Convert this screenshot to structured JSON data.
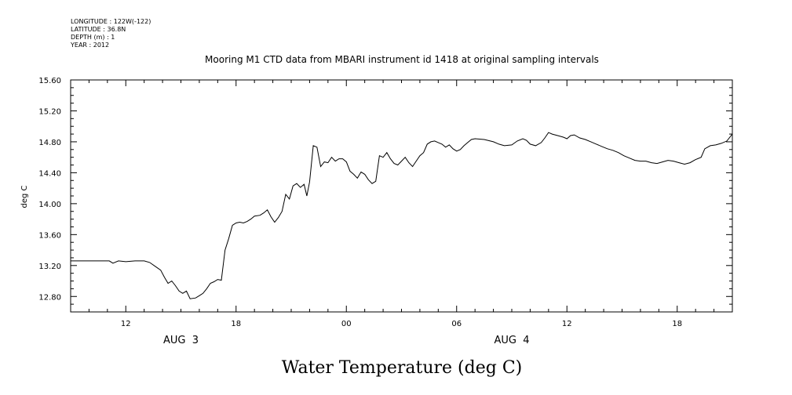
{
  "metadata": {
    "longitude": "LONGITUDE : 122W(-122)",
    "latitude": "LATITUDE : 36.8N",
    "depth": "DEPTH (m) : 1",
    "year": "YEAR : 2012"
  },
  "caption": "Water Temperature (deg C)",
  "chart_data": {
    "type": "line",
    "title": "Mooring M1 CTD data from MBARI instrument id 1418 at original sampling intervals",
    "xlabel": "",
    "ylabel": "deg C",
    "x_units": "hours since 2012-08-03 00:00",
    "xlim": [
      9,
      45
    ],
    "ylim": [
      12.6,
      15.6
    ],
    "y_ticks": [
      {
        "value": 12.8,
        "label": "12.80"
      },
      {
        "value": 13.2,
        "label": "13.20"
      },
      {
        "value": 13.6,
        "label": "13.60"
      },
      {
        "value": 14.0,
        "label": "14.00"
      },
      {
        "value": 14.4,
        "label": "14.40"
      },
      {
        "value": 14.8,
        "label": "14.80"
      },
      {
        "value": 15.2,
        "label": "15.20"
      },
      {
        "value": 15.6,
        "label": "15.60"
      }
    ],
    "x_ticks": [
      {
        "value": 12,
        "label": "12"
      },
      {
        "value": 18,
        "label": "18"
      },
      {
        "value": 24,
        "label": "00"
      },
      {
        "value": 30,
        "label": "06"
      },
      {
        "value": 36,
        "label": "12"
      },
      {
        "value": 42,
        "label": "18"
      }
    ],
    "date_labels": [
      {
        "value": 15,
        "label": "AUG  3"
      },
      {
        "value": 33,
        "label": "AUG  4"
      }
    ],
    "grid": false,
    "series": [
      {
        "values": [
          [
            9.0,
            13.26
          ],
          [
            9.5,
            13.26
          ],
          [
            10.0,
            13.26
          ],
          [
            10.5,
            13.26
          ],
          [
            11.1,
            13.26
          ],
          [
            11.3,
            13.23
          ],
          [
            11.6,
            13.26
          ],
          [
            12.0,
            13.25
          ],
          [
            12.5,
            13.26
          ],
          [
            13.0,
            13.26
          ],
          [
            13.3,
            13.24
          ],
          [
            13.6,
            13.19
          ],
          [
            13.9,
            13.14
          ],
          [
            14.1,
            13.05
          ],
          [
            14.3,
            12.97
          ],
          [
            14.5,
            13.0
          ],
          [
            14.7,
            12.94
          ],
          [
            14.9,
            12.87
          ],
          [
            15.1,
            12.84
          ],
          [
            15.3,
            12.87
          ],
          [
            15.5,
            12.77
          ],
          [
            15.8,
            12.78
          ],
          [
            16.0,
            12.81
          ],
          [
            16.2,
            12.84
          ],
          [
            16.4,
            12.9
          ],
          [
            16.6,
            12.97
          ],
          [
            16.8,
            12.99
          ],
          [
            17.0,
            13.02
          ],
          [
            17.2,
            13.01
          ],
          [
            17.4,
            13.4
          ],
          [
            17.6,
            13.55
          ],
          [
            17.8,
            13.72
          ],
          [
            18.0,
            13.75
          ],
          [
            18.2,
            13.76
          ],
          [
            18.4,
            13.75
          ],
          [
            18.6,
            13.77
          ],
          [
            18.8,
            13.8
          ],
          [
            19.0,
            13.84
          ],
          [
            19.3,
            13.85
          ],
          [
            19.5,
            13.88
          ],
          [
            19.7,
            13.92
          ],
          [
            19.9,
            13.83
          ],
          [
            20.1,
            13.76
          ],
          [
            20.3,
            13.82
          ],
          [
            20.5,
            13.9
          ],
          [
            20.7,
            14.12
          ],
          [
            20.9,
            14.06
          ],
          [
            21.1,
            14.23
          ],
          [
            21.3,
            14.26
          ],
          [
            21.5,
            14.21
          ],
          [
            21.7,
            14.25
          ],
          [
            21.85,
            14.1
          ],
          [
            22.0,
            14.28
          ],
          [
            22.2,
            14.75
          ],
          [
            22.4,
            14.73
          ],
          [
            22.6,
            14.48
          ],
          [
            22.8,
            14.54
          ],
          [
            23.0,
            14.53
          ],
          [
            23.2,
            14.6
          ],
          [
            23.4,
            14.55
          ],
          [
            23.6,
            14.58
          ],
          [
            23.8,
            14.58
          ],
          [
            24.0,
            14.54
          ],
          [
            24.2,
            14.42
          ],
          [
            24.4,
            14.38
          ],
          [
            24.6,
            14.33
          ],
          [
            24.8,
            14.41
          ],
          [
            25.0,
            14.38
          ],
          [
            25.2,
            14.31
          ],
          [
            25.4,
            14.26
          ],
          [
            25.6,
            14.29
          ],
          [
            25.8,
            14.62
          ],
          [
            26.0,
            14.6
          ],
          [
            26.2,
            14.66
          ],
          [
            26.4,
            14.58
          ],
          [
            26.6,
            14.52
          ],
          [
            26.8,
            14.5
          ],
          [
            27.0,
            14.55
          ],
          [
            27.2,
            14.6
          ],
          [
            27.4,
            14.53
          ],
          [
            27.6,
            14.48
          ],
          [
            27.8,
            14.55
          ],
          [
            28.0,
            14.62
          ],
          [
            28.2,
            14.66
          ],
          [
            28.4,
            14.77
          ],
          [
            28.6,
            14.8
          ],
          [
            28.8,
            14.81
          ],
          [
            29.0,
            14.79
          ],
          [
            29.2,
            14.77
          ],
          [
            29.4,
            14.73
          ],
          [
            29.6,
            14.76
          ],
          [
            29.8,
            14.71
          ],
          [
            30.0,
            14.68
          ],
          [
            30.2,
            14.7
          ],
          [
            30.4,
            14.75
          ],
          [
            30.6,
            14.79
          ],
          [
            30.8,
            14.83
          ],
          [
            31.0,
            14.84
          ],
          [
            31.5,
            14.83
          ],
          [
            32.0,
            14.8
          ],
          [
            32.3,
            14.77
          ],
          [
            32.6,
            14.75
          ],
          [
            33.0,
            14.76
          ],
          [
            33.3,
            14.81
          ],
          [
            33.6,
            14.84
          ],
          [
            33.8,
            14.82
          ],
          [
            34.0,
            14.77
          ],
          [
            34.3,
            14.75
          ],
          [
            34.6,
            14.79
          ],
          [
            34.8,
            14.85
          ],
          [
            35.0,
            14.92
          ],
          [
            35.2,
            14.9
          ],
          [
            35.5,
            14.88
          ],
          [
            35.8,
            14.86
          ],
          [
            36.0,
            14.84
          ],
          [
            36.2,
            14.88
          ],
          [
            36.4,
            14.89
          ],
          [
            36.7,
            14.85
          ],
          [
            37.0,
            14.83
          ],
          [
            37.3,
            14.8
          ],
          [
            37.6,
            14.77
          ],
          [
            37.9,
            14.74
          ],
          [
            38.2,
            14.71
          ],
          [
            38.5,
            14.69
          ],
          [
            38.8,
            14.66
          ],
          [
            39.1,
            14.62
          ],
          [
            39.4,
            14.59
          ],
          [
            39.7,
            14.56
          ],
          [
            40.0,
            14.55
          ],
          [
            40.3,
            14.55
          ],
          [
            40.6,
            14.53
          ],
          [
            40.9,
            14.52
          ],
          [
            41.2,
            14.54
          ],
          [
            41.5,
            14.56
          ],
          [
            41.8,
            14.55
          ],
          [
            42.1,
            14.53
          ],
          [
            42.4,
            14.51
          ],
          [
            42.7,
            14.53
          ],
          [
            43.0,
            14.57
          ],
          [
            43.3,
            14.6
          ],
          [
            43.5,
            14.71
          ],
          [
            43.8,
            14.75
          ],
          [
            44.1,
            14.76
          ],
          [
            44.4,
            14.78
          ],
          [
            44.7,
            14.81
          ],
          [
            45.0,
            14.9
          ]
        ]
      }
    ]
  }
}
